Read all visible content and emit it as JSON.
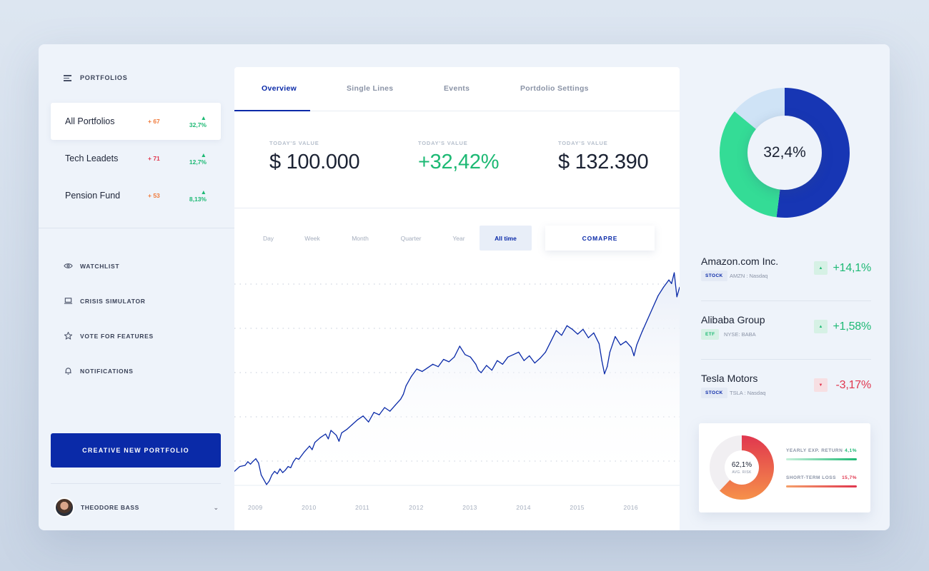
{
  "sidebar": {
    "header": "PORTFOLIOS",
    "portfolios": [
      {
        "name": "All Portfolios",
        "count": "+ 67",
        "count_color": "#f07a3a",
        "pct": "▲ 32,7%"
      },
      {
        "name": "Tech Leadets",
        "count": "+ 71",
        "count_color": "#e0364e",
        "pct": "▲ 12,7%"
      },
      {
        "name": "Pension Fund",
        "count": "+ 53",
        "count_color": "#f07a3a",
        "pct": "▲ 8,13%"
      }
    ],
    "nav": [
      {
        "label": "WATCHLIST",
        "icon": "eye-icon"
      },
      {
        "label": "CRISIS SIMULATOR",
        "icon": "laptop-icon"
      },
      {
        "label": "VOTE FOR FEATURES",
        "icon": "star-icon"
      },
      {
        "label": "NOTIFICATIONS",
        "icon": "bell-icon"
      }
    ],
    "create_button": "CREATIVE NEW PORTFOLIO",
    "user": {
      "name": "THEODORE BASS"
    }
  },
  "main": {
    "tabs": [
      "Overview",
      "Single Lines",
      "Events",
      "Portdolio Settings"
    ],
    "stats": [
      {
        "caption": "TODAY'S VALUE",
        "value": "$ 100.000"
      },
      {
        "caption": "TODAY'S VALUE",
        "value": "+32,42%"
      },
      {
        "caption": "TODAY'S VALUE",
        "value": "$ 132.390"
      }
    ],
    "ranges": [
      "Day",
      "Week",
      "Month",
      "Quarter",
      "Year",
      "All time"
    ],
    "active_range": "All time",
    "compare_button": "COMAPRE"
  },
  "chart_data": {
    "type": "line",
    "x_ticks": [
      "2009",
      "2010",
      "2011",
      "2012",
      "2013",
      "2014",
      "2015",
      "2016"
    ],
    "line_color": "#0a2aa8",
    "grid": "dotted horizontal",
    "series": [
      {
        "values": [
          [
            2008.6,
            28
          ],
          [
            2008.7,
            36
          ],
          [
            2008.8,
            38
          ],
          [
            2008.85,
            44
          ],
          [
            2008.9,
            40
          ],
          [
            2008.95,
            45
          ],
          [
            2009.0,
            49
          ],
          [
            2009.05,
            42
          ],
          [
            2009.1,
            22
          ],
          [
            2009.15,
            14
          ],
          [
            2009.2,
            6
          ],
          [
            2009.25,
            12
          ],
          [
            2009.3,
            22
          ],
          [
            2009.35,
            28
          ],
          [
            2009.4,
            24
          ],
          [
            2009.45,
            32
          ],
          [
            2009.5,
            26
          ],
          [
            2009.55,
            30
          ],
          [
            2009.6,
            36
          ],
          [
            2009.65,
            34
          ],
          [
            2009.7,
            44
          ],
          [
            2009.75,
            50
          ],
          [
            2009.8,
            48
          ],
          [
            2009.9,
            60
          ],
          [
            2010.0,
            70
          ],
          [
            2010.05,
            64
          ],
          [
            2010.1,
            76
          ],
          [
            2010.2,
            84
          ],
          [
            2010.3,
            90
          ],
          [
            2010.35,
            82
          ],
          [
            2010.4,
            96
          ],
          [
            2010.5,
            88
          ],
          [
            2010.55,
            78
          ],
          [
            2010.6,
            92
          ],
          [
            2010.7,
            98
          ],
          [
            2010.8,
            106
          ],
          [
            2010.9,
            114
          ],
          [
            2011.0,
            120
          ],
          [
            2011.1,
            110
          ],
          [
            2011.2,
            126
          ],
          [
            2011.3,
            122
          ],
          [
            2011.4,
            134
          ],
          [
            2011.5,
            128
          ],
          [
            2011.6,
            138
          ],
          [
            2011.7,
            148
          ],
          [
            2011.75,
            156
          ],
          [
            2011.8,
            170
          ],
          [
            2011.9,
            186
          ],
          [
            2012.0,
            198
          ],
          [
            2012.1,
            194
          ],
          [
            2012.2,
            200
          ],
          [
            2012.3,
            206
          ],
          [
            2012.4,
            202
          ],
          [
            2012.5,
            214
          ],
          [
            2012.6,
            210
          ],
          [
            2012.7,
            218
          ],
          [
            2012.8,
            236
          ],
          [
            2012.9,
            222
          ],
          [
            2013.0,
            218
          ],
          [
            2013.1,
            206
          ],
          [
            2013.15,
            196
          ],
          [
            2013.2,
            192
          ],
          [
            2013.3,
            204
          ],
          [
            2013.4,
            196
          ],
          [
            2013.5,
            212
          ],
          [
            2013.6,
            206
          ],
          [
            2013.7,
            218
          ],
          [
            2013.8,
            222
          ],
          [
            2013.9,
            226
          ],
          [
            2014.0,
            212
          ],
          [
            2014.1,
            220
          ],
          [
            2014.2,
            208
          ],
          [
            2014.3,
            216
          ],
          [
            2014.4,
            226
          ],
          [
            2014.5,
            244
          ],
          [
            2014.6,
            262
          ],
          [
            2014.7,
            254
          ],
          [
            2014.8,
            270
          ],
          [
            2014.9,
            264
          ],
          [
            2015.0,
            256
          ],
          [
            2015.1,
            264
          ],
          [
            2015.2,
            250
          ],
          [
            2015.3,
            258
          ],
          [
            2015.4,
            240
          ],
          [
            2015.45,
            212
          ],
          [
            2015.5,
            190
          ],
          [
            2015.55,
            202
          ],
          [
            2015.6,
            226
          ],
          [
            2015.7,
            252
          ],
          [
            2015.8,
            238
          ],
          [
            2015.9,
            244
          ],
          [
            2016.0,
            234
          ],
          [
            2016.05,
            220
          ],
          [
            2016.1,
            238
          ],
          [
            2016.2,
            260
          ],
          [
            2016.3,
            280
          ],
          [
            2016.4,
            300
          ],
          [
            2016.5,
            320
          ],
          [
            2016.6,
            334
          ],
          [
            2016.7,
            346
          ],
          [
            2016.75,
            340
          ],
          [
            2016.8,
            358
          ],
          [
            2016.85,
            318
          ],
          [
            2016.9,
            334
          ]
        ]
      }
    ]
  },
  "right": {
    "donut": {
      "label": "32,4%",
      "segments": [
        {
          "value": 52,
          "color": "#1736b4"
        },
        {
          "value": 34,
          "color": "#34dc96"
        },
        {
          "value": 14,
          "color": "#cfe3f6"
        }
      ]
    },
    "stocks": [
      {
        "name": "Amazon.com Inc.",
        "tag": "STOCK",
        "exchange": "AMZN : Nasdaq",
        "change": "+14,1%",
        "direction": "up"
      },
      {
        "name": "Alibaba Group",
        "tag": "ETF",
        "exchange": "NYSE: BABA",
        "change": "+1,58%",
        "direction": "up"
      },
      {
        "name": "Tesla Motors",
        "tag": "STOCK",
        "exchange": "TSLA : Nasdaq",
        "change": "-3,17%",
        "direction": "down"
      }
    ],
    "risk": {
      "value": "62,1%",
      "label": "AVG. RISK",
      "risk_fraction": 0.621,
      "metrics": [
        {
          "name": "YEARLY EXP. RETURN",
          "value": "4,1%",
          "color": "#1db974"
        },
        {
          "name": "SHORT-TERM LOSS",
          "value": "15,7%",
          "color": "#e0364e"
        }
      ]
    }
  }
}
